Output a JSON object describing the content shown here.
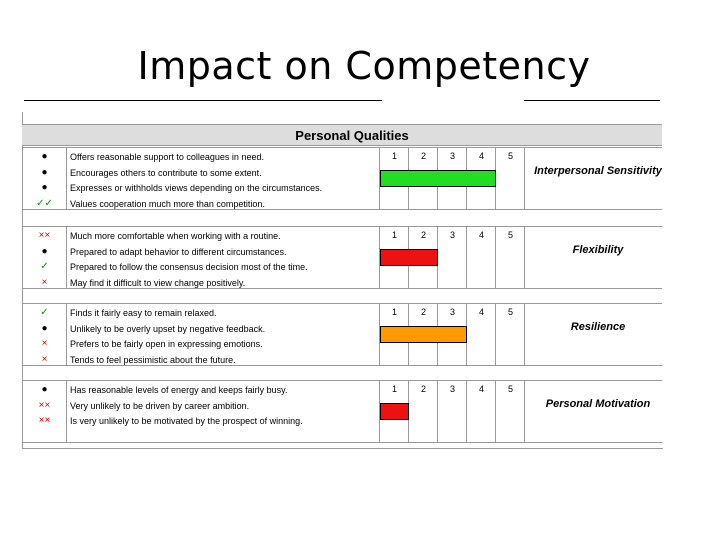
{
  "title": "Impact on Competency",
  "table_header": "Personal Qualities",
  "scale": [
    "1",
    "2",
    "3",
    "4",
    "5"
  ],
  "sections": [
    {
      "competency": "Interpersonal Sensitivity",
      "score": 4,
      "bar_color": "#22dd22",
      "rows": [
        {
          "symbol": "●",
          "tone": "neutral",
          "text": "Offers reasonable support to colleagues in need."
        },
        {
          "symbol": "●",
          "tone": "neutral",
          "text": "Encourages others to contribute to some extent."
        },
        {
          "symbol": "●",
          "tone": "neutral",
          "text": "Expresses or withholds views depending on the circumstances."
        },
        {
          "symbol": "✓✓",
          "tone": "good",
          "text": "Values cooperation much more than competition."
        }
      ]
    },
    {
      "competency": "Flexibility",
      "score": 2,
      "bar_color": "#ee1111",
      "rows": [
        {
          "symbol": "××",
          "tone": "bad",
          "text": "Much more comfortable when working with a routine."
        },
        {
          "symbol": "●",
          "tone": "neutral",
          "text": "Prepared to adapt behavior to different circumstances."
        },
        {
          "symbol": "✓",
          "tone": "good",
          "text": "Prepared to follow the consensus decision most of the time."
        },
        {
          "symbol": "×",
          "tone": "bad",
          "text": "May find it difficult to view change positively."
        }
      ]
    },
    {
      "competency": "Resilience",
      "score": 3,
      "bar_color": "#ff9900",
      "rows": [
        {
          "symbol": "✓",
          "tone": "good",
          "text": "Finds it fairly easy to remain relaxed."
        },
        {
          "symbol": "●",
          "tone": "neutral",
          "text": "Unlikely to be overly upset by negative feedback."
        },
        {
          "symbol": "×",
          "tone": "bad",
          "text": "Prefers to be fairly open in expressing emotions."
        },
        {
          "symbol": "×",
          "tone": "bad",
          "text": "Tends to feel pessimistic about the future."
        }
      ]
    },
    {
      "competency": "Personal Motivation",
      "score": 1,
      "bar_color": "#ee1111",
      "rows": [
        {
          "symbol": "●",
          "tone": "neutral",
          "text": "Has reasonable levels of energy and keeps fairly busy."
        },
        {
          "symbol": "××",
          "tone": "bad",
          "text": "Very unlikely to be driven by career ambition."
        },
        {
          "symbol": "××",
          "tone": "bad",
          "text": "Is very unlikely to be motivated by the prospect of winning."
        }
      ]
    }
  ]
}
